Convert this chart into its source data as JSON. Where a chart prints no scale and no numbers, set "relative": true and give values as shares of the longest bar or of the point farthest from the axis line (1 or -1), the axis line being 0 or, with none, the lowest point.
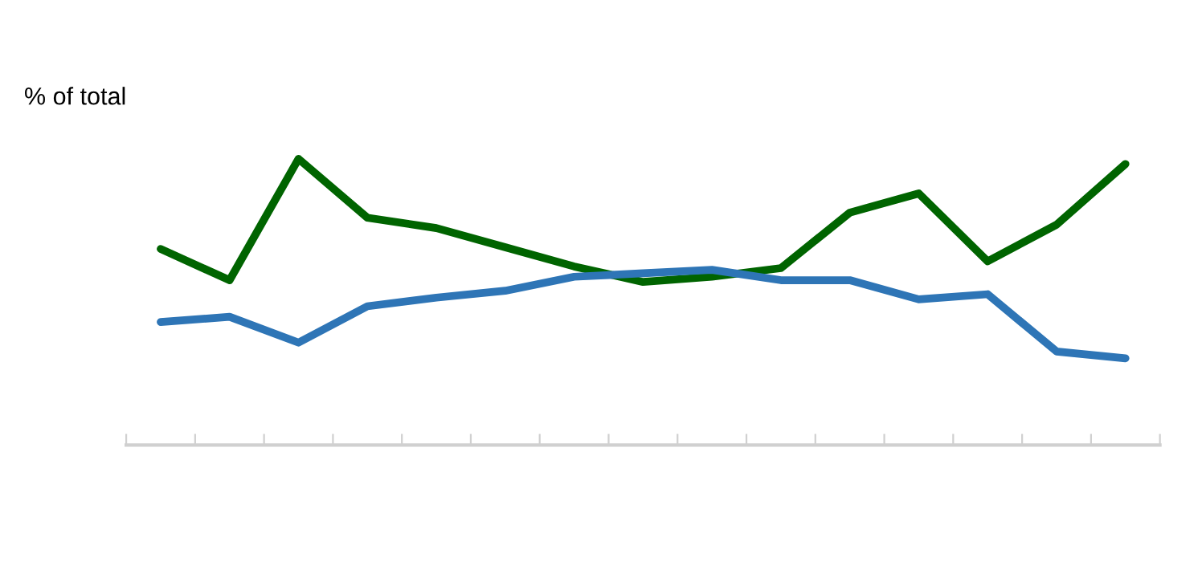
{
  "chart_data": {
    "type": "line",
    "ylabel": "% of total",
    "relative": true,
    "categories": [
      null,
      null,
      null,
      null,
      null,
      null,
      null,
      null,
      null,
      null,
      null,
      null,
      null,
      null,
      null
    ],
    "series": [
      {
        "color": "#006400",
        "values": [
          0.685,
          0.576,
          1,
          0.794,
          0.758,
          0.691,
          0.624,
          0.57,
          0.588,
          0.618,
          0.812,
          0.879,
          0.642,
          0.77,
          0.982
        ]
      },
      {
        "color": "#2e75b6",
        "values": [
          0.43,
          0.448,
          0.358,
          0.485,
          0.515,
          0.539,
          0.588,
          0.6,
          0.612,
          0.576,
          0.576,
          0.509,
          0.527,
          0.327,
          0.303
        ]
      }
    ],
    "grid": false
  }
}
